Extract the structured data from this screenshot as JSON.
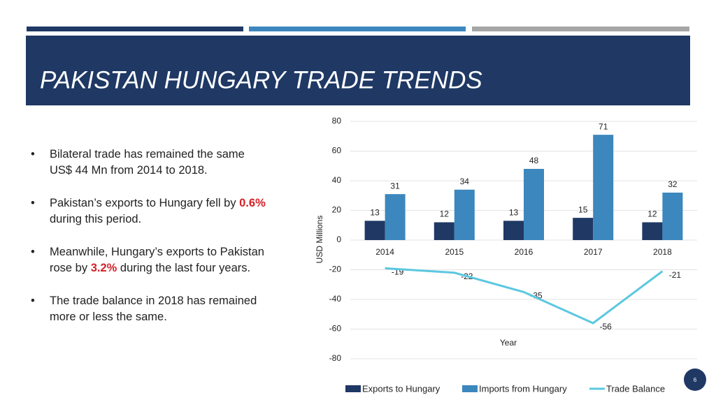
{
  "slide": {
    "title": "PAKISTAN HUNGARY TRADE TRENDS",
    "page_number": "6",
    "bullets": [
      [
        "Bilateral trade has remained the same US$ 44 Mn from 2014 to 2018."
      ],
      [
        "Pakistan’s exports to Hungary fell by ",
        "0.6%",
        " during this period."
      ],
      [
        "Meanwhile, Hungary’s exports to Pakistan rose by ",
        "3.2%",
        " during the last four years."
      ],
      [
        "The trade balance in 2018 has remained more or less the same."
      ]
    ]
  },
  "chart_data": {
    "type": "bar",
    "y_label": "USD Millions",
    "x_label": "Year",
    "categories": [
      "2014",
      "2015",
      "2016",
      "2017",
      "2018"
    ],
    "series": [
      {
        "name": "Exports to Hungary",
        "color": "#1f3864",
        "type": "bar",
        "values": [
          13,
          12,
          13,
          15,
          12
        ]
      },
      {
        "name": "Imports from Hungary",
        "color": "#3c87bd",
        "type": "bar",
        "values": [
          31,
          34,
          48,
          71,
          32
        ]
      },
      {
        "name": "Trade Balance",
        "color": "#5bc8e0",
        "type": "line",
        "values": [
          -19,
          -22,
          -35,
          -56,
          -21
        ]
      }
    ],
    "ylim": [
      -80,
      80
    ],
    "yticks": [
      -80,
      -60,
      -40,
      -20,
      0,
      20,
      40,
      60,
      80
    ],
    "grid": true,
    "legend": "bottom"
  }
}
